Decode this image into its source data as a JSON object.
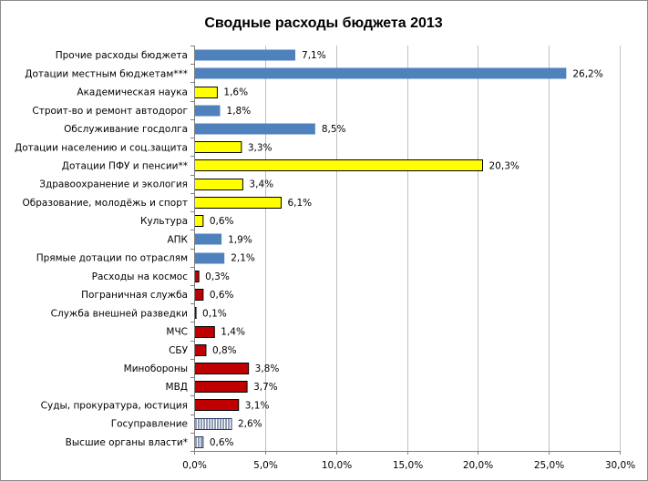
{
  "chart_data": {
    "type": "bar",
    "orientation": "horizontal",
    "title": "Сводные расходы бюджета 2013",
    "xlabel": "",
    "ylabel": "",
    "xlim": [
      0,
      30
    ],
    "grid": true,
    "ticks": [
      "0,0%",
      "5,0%",
      "10,0%",
      "15,0%",
      "20,0%",
      "25,0%",
      "30,0%"
    ],
    "colors": {
      "blue": "#4f81bd",
      "yellow": "#ffff00",
      "red": "#c00000",
      "hatched": "#ffffff",
      "grid": "#c0c0c0",
      "axis": "#808080"
    },
    "bars": [
      {
        "category": "Прочие расходы бюджета",
        "value": 7.1,
        "label": "7,1%",
        "color": "blue"
      },
      {
        "category": "Дотации местным бюджетам***",
        "value": 26.2,
        "label": "26,2%",
        "color": "blue"
      },
      {
        "category": "Академическая наука",
        "value": 1.6,
        "label": "1,6%",
        "color": "yellow"
      },
      {
        "category": "Строит-во и ремонт автодорог",
        "value": 1.8,
        "label": "1,8%",
        "color": "blue"
      },
      {
        "category": "Обслуживание госдолга",
        "value": 8.5,
        "label": "8,5%",
        "color": "blue"
      },
      {
        "category": "Дотации населению и соц.защита",
        "value": 3.3,
        "label": "3,3%",
        "color": "yellow"
      },
      {
        "category": "Дотации ПФУ и пенсии**",
        "value": 20.3,
        "label": "20,3%",
        "color": "yellow"
      },
      {
        "category": "Здравоохранение и экология",
        "value": 3.4,
        "label": "3,4%",
        "color": "yellow"
      },
      {
        "category": "Образование, молодёжь и спорт",
        "value": 6.1,
        "label": "6,1%",
        "color": "yellow"
      },
      {
        "category": "Культура",
        "value": 0.6,
        "label": "0,6%",
        "color": "yellow"
      },
      {
        "category": "АПК",
        "value": 1.9,
        "label": "1,9%",
        "color": "blue"
      },
      {
        "category": "Прямые дотации по отраслям",
        "value": 2.1,
        "label": "2,1%",
        "color": "blue"
      },
      {
        "category": "Расходы на космос",
        "value": 0.3,
        "label": "0,3%",
        "color": "red"
      },
      {
        "category": "Пограничная служба",
        "value": 0.6,
        "label": "0,6%",
        "color": "red"
      },
      {
        "category": "Служба внешней разведки",
        "value": 0.1,
        "label": "0,1%",
        "color": "red"
      },
      {
        "category": "МЧС",
        "value": 1.4,
        "label": "1,4%",
        "color": "red"
      },
      {
        "category": "СБУ",
        "value": 0.8,
        "label": "0,8%",
        "color": "red"
      },
      {
        "category": "Минобороны",
        "value": 3.8,
        "label": "3,8%",
        "color": "red"
      },
      {
        "category": "МВД",
        "value": 3.7,
        "label": "3,7%",
        "color": "red"
      },
      {
        "category": "Суды, прокуратура, юстиция",
        "value": 3.1,
        "label": "3,1%",
        "color": "red"
      },
      {
        "category": "Госуправление",
        "value": 2.6,
        "label": "2,6%",
        "color": "hatched"
      },
      {
        "category": "Высшие органы власти*",
        "value": 0.6,
        "label": "0,6%",
        "color": "hatched"
      }
    ]
  }
}
